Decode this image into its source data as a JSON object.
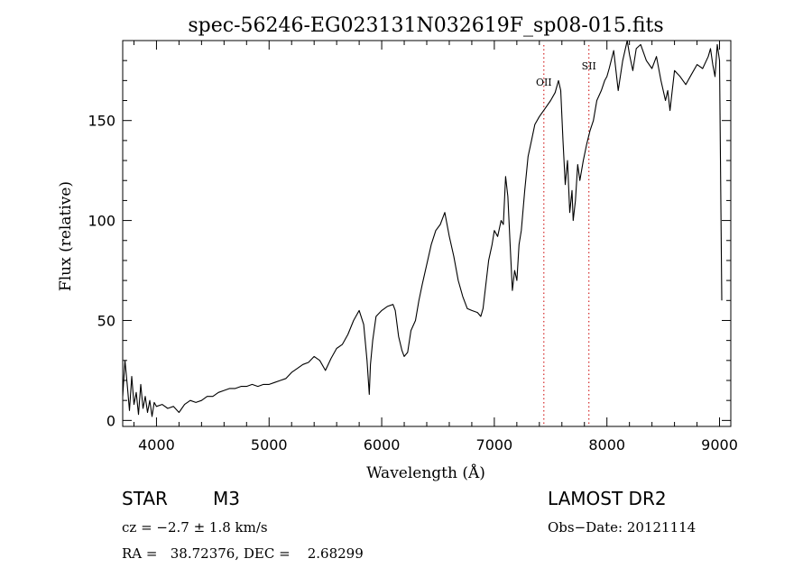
{
  "chart_data": {
    "type": "line",
    "title": "spec-56246-EG023131N032619F_sp08-015.fits",
    "xlabel": "Wavelength (Å)",
    "ylabel": "Flux (relative)",
    "xlim": [
      3700,
      9100
    ],
    "ylim": [
      -3,
      190
    ],
    "xticks": [
      4000,
      5000,
      6000,
      7000,
      8000,
      9000
    ],
    "yticks": [
      0,
      50,
      100,
      150
    ],
    "grid": false,
    "series": [
      {
        "color": "#000000",
        "x": [
          3700,
          3720,
          3740,
          3760,
          3780,
          3800,
          3820,
          3840,
          3860,
          3880,
          3900,
          3920,
          3940,
          3960,
          3980,
          4000,
          4050,
          4100,
          4150,
          4200,
          4250,
          4300,
          4350,
          4400,
          4450,
          4500,
          4550,
          4600,
          4650,
          4700,
          4750,
          4800,
          4850,
          4900,
          4950,
          5000,
          5050,
          5100,
          5150,
          5200,
          5250,
          5300,
          5350,
          5400,
          5450,
          5500,
          5550,
          5600,
          5650,
          5700,
          5750,
          5800,
          5840,
          5870,
          5890,
          5900,
          5920,
          5950,
          6000,
          6050,
          6100,
          6120,
          6150,
          6180,
          6200,
          6230,
          6260,
          6300,
          6330,
          6360,
          6400,
          6440,
          6480,
          6520,
          6560,
          6600,
          6640,
          6680,
          6720,
          6760,
          6800,
          6850,
          6880,
          6900,
          6950,
          6980,
          7000,
          7030,
          7060,
          7080,
          7100,
          7120,
          7140,
          7160,
          7180,
          7200,
          7220,
          7240,
          7270,
          7300,
          7330,
          7360,
          7400,
          7450,
          7500,
          7540,
          7570,
          7590,
          7610,
          7630,
          7650,
          7670,
          7690,
          7700,
          7720,
          7740,
          7760,
          7790,
          7820,
          7850,
          7880,
          7910,
          7950,
          7980,
          8000,
          8020,
          8060,
          8100,
          8140,
          8180,
          8200,
          8230,
          8260,
          8300,
          8350,
          8400,
          8440,
          8480,
          8520,
          8540,
          8560,
          8600,
          8650,
          8700,
          8750,
          8800,
          8850,
          8900,
          8920,
          8940,
          8960,
          8980,
          9000,
          9020
        ],
        "y": [
          12,
          30,
          18,
          5,
          22,
          8,
          14,
          3,
          18,
          6,
          12,
          4,
          10,
          2,
          9,
          7,
          8,
          6,
          7,
          4,
          8,
          10,
          9,
          10,
          12,
          12,
          14,
          15,
          16,
          16,
          17,
          17,
          18,
          17,
          18,
          18,
          19,
          20,
          21,
          24,
          26,
          28,
          29,
          32,
          30,
          25,
          31,
          36,
          38,
          43,
          50,
          55,
          48,
          30,
          13,
          28,
          40,
          52,
          55,
          57,
          58,
          55,
          42,
          35,
          32,
          34,
          45,
          50,
          60,
          68,
          78,
          88,
          95,
          98,
          104,
          92,
          82,
          70,
          62,
          56,
          55,
          54,
          52,
          56,
          80,
          88,
          95,
          92,
          100,
          98,
          122,
          112,
          88,
          65,
          75,
          70,
          88,
          95,
          115,
          132,
          140,
          148,
          152,
          156,
          160,
          164,
          170,
          165,
          140,
          118,
          130,
          104,
          115,
          100,
          110,
          128,
          120,
          130,
          138,
          145,
          150,
          160,
          165,
          170,
          172,
          176,
          185,
          165,
          180,
          190,
          183,
          175,
          186,
          188,
          180,
          176,
          182,
          170,
          160,
          165,
          155,
          175,
          172,
          168,
          173,
          178,
          176,
          182,
          186,
          178,
          172,
          188,
          180,
          60
        ]
      }
    ],
    "annotations": [
      {
        "label": "OII",
        "x": 7440
      },
      {
        "label": "SII",
        "x": 7840
      }
    ]
  },
  "info": {
    "object_class": "STAR",
    "subclass": "M3",
    "survey": "LAMOST DR2",
    "cz": "cz = −2.7 ± 1.8 km/s",
    "obs_date": "Obs−Date: 20121114",
    "coords": "RA =   38.72376, DEC =    2.68299"
  },
  "colors": {
    "spectrum": "#000000",
    "line_marker": "#cc0000",
    "axes": "#000000"
  }
}
